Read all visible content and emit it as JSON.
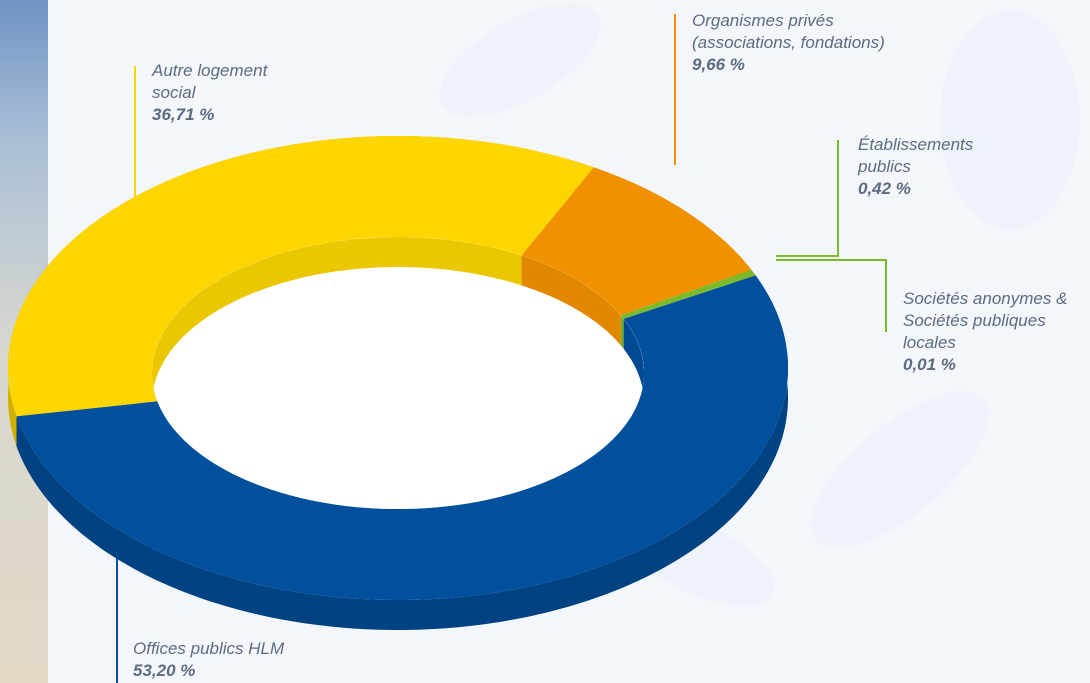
{
  "chart_data": {
    "type": "pie",
    "categories": [
      "Offices publics HLM",
      "Autre logement social",
      "Organismes privés (associations, fondations)",
      "Établissements publics",
      "Sociétés anonymes & Sociétés publiques locales"
    ],
    "values": [
      53.2,
      36.71,
      9.66,
      0.42,
      0.01
    ],
    "value_labels": [
      "53,20 %",
      "36,71 %",
      "9,66 %",
      "0,42 %",
      "0,01 %"
    ],
    "colors": [
      "#00509e",
      "#fdd600",
      "#f29100",
      "#7cba2a",
      "#8cc63f"
    ]
  }
}
